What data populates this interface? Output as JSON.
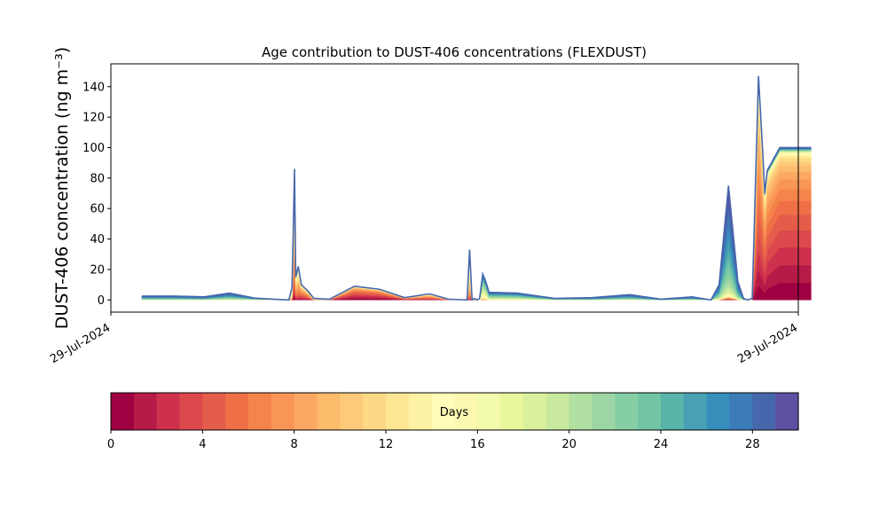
{
  "chart_data": {
    "type": "area",
    "title": "Age contribution to DUST-406 concentrations (FLEXDUST)",
    "ylabel": "DUST-406 concentration (ng m⁻³)",
    "xlabel": "",
    "x_tick_labels": [
      "29-Jul-2024",
      "29-Jul-2024"
    ],
    "ylim": [
      -8,
      155
    ],
    "y_ticks": [
      0,
      20,
      40,
      60,
      80,
      100,
      120,
      140
    ],
    "stacked": true,
    "series_note": "30 stacked age classes, 0 to 30 days",
    "x": [
      0.0,
      0.05,
      0.1,
      0.14,
      0.18,
      0.21,
      0.235,
      0.24,
      0.242,
      0.244,
      0.246,
      0.25,
      0.255,
      0.26,
      0.265,
      0.275,
      0.3,
      0.34,
      0.38,
      0.42,
      0.46,
      0.49,
      0.52,
      0.524,
      0.528,
      0.532,
      0.536,
      0.54,
      0.545,
      0.55,
      0.555,
      0.6,
      0.66,
      0.72,
      0.78,
      0.83,
      0.88,
      0.91,
      0.923,
      0.938,
      0.953,
      0.962,
      0.968,
      0.976,
      0.986,
      0.993,
      0.996,
      1.0,
      1.02,
      1.07
    ],
    "total": [
      2.5,
      2.5,
      2.0,
      4.5,
      1.2,
      0.5,
      0,
      8,
      45,
      86,
      15,
      22,
      10,
      8,
      6,
      1,
      0.5,
      9,
      7,
      1.5,
      4,
      0.5,
      0,
      33,
      0,
      1,
      0,
      1,
      17,
      12,
      5,
      4.5,
      1,
      1.5,
      3.5,
      0.5,
      2,
      0,
      10,
      75,
      12,
      1,
      0,
      1,
      147,
      95,
      70,
      85,
      100,
      100
    ],
    "old_fraction": [
      0.9,
      0.9,
      0.9,
      0.9,
      0.8,
      0.7,
      0.5,
      0.5,
      0.3,
      0.3,
      0.3,
      0.3,
      0.2,
      0.2,
      0.2,
      0.4,
      0.3,
      0.05,
      0.05,
      0.1,
      0.2,
      0.2,
      0.2,
      0.4,
      0.3,
      0.3,
      0.3,
      0.5,
      0.7,
      0.7,
      0.8,
      0.8,
      0.8,
      0.9,
      0.9,
      0.9,
      0.9,
      0.9,
      0.9,
      0.95,
      0.95,
      0.9,
      0.8,
      0.5,
      0.15,
      0.15,
      0.15,
      0.1,
      0.05,
      0.05
    ],
    "colorbar": {
      "label": "Days",
      "min": 0,
      "max": 30,
      "ticks": [
        0,
        4,
        8,
        12,
        16,
        20,
        24,
        28
      ],
      "colors": [
        "#9e0142",
        "#b61b48",
        "#cd314c",
        "#dc494c",
        "#e45d4a",
        "#ef6f47",
        "#f5844b",
        "#f99655",
        "#fba862",
        "#fdbb6c",
        "#fdca79",
        "#fed985",
        "#fee793",
        "#fef2a4",
        "#fffbb8",
        "#fbf9b0",
        "#f3faac",
        "#e8f69c",
        "#dbf09c",
        "#c8e99e",
        "#b2e0a2",
        "#9dd6a4",
        "#86cfa5",
        "#71c5a5",
        "#5ab4a9",
        "#47a0b3",
        "#378ebb",
        "#3b7bb8",
        "#4767ad",
        "#5e4fa2"
      ]
    }
  }
}
